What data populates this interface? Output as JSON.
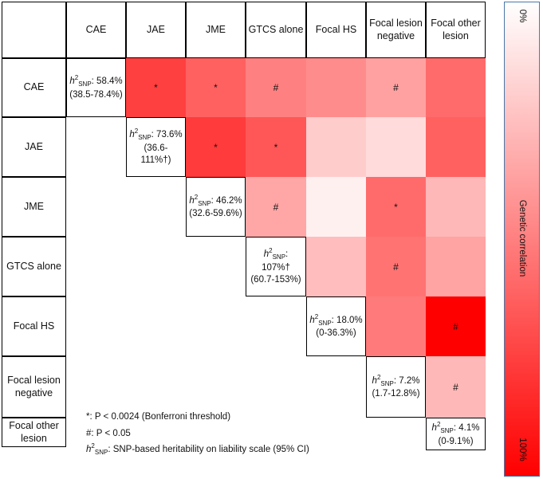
{
  "chart_data": {
    "type": "heatmap",
    "title": "",
    "row_labels": [
      "CAE",
      "JAE",
      "JME",
      "GTCS alone",
      "Focal HS",
      "Focal lesion negative",
      "Focal other lesion"
    ],
    "col_labels": [
      "CAE",
      "JAE",
      "JME",
      "GTCS alone",
      "Focal HS",
      "Focal lesion negative",
      "Focal other lesion"
    ],
    "colorbar": {
      "label": "Genetic correlation",
      "min_label": "0%",
      "max_label": "100%",
      "min": 0,
      "max": 100
    },
    "heritability": [
      {
        "prefix": "",
        "value": ": 58.4% (38.5-78.4%)"
      },
      {
        "prefix": "",
        "value": ": 73.6% (36.6-111%†)"
      },
      {
        "prefix": "",
        "value": ": 46.2% (32.6-59.6%)"
      },
      {
        "prefix": "",
        "value": ": 107%† (60.7-153%)"
      },
      {
        "prefix": "",
        "value": ": 18.0% (0-36.3%)"
      },
      {
        "prefix": "",
        "value": ": 7.2% (1.7-12.8%)"
      },
      {
        "prefix": "",
        "value": ": 4.1% (0-9.1%)"
      }
    ],
    "correlations": [
      {
        "row": 0,
        "col": 1,
        "value": 75,
        "mark": "*"
      },
      {
        "row": 0,
        "col": 2,
        "value": 62,
        "mark": "*"
      },
      {
        "row": 0,
        "col": 3,
        "value": 50,
        "mark": "#"
      },
      {
        "row": 0,
        "col": 4,
        "value": 45,
        "mark": ""
      },
      {
        "row": 0,
        "col": 5,
        "value": 37,
        "mark": "#"
      },
      {
        "row": 0,
        "col": 6,
        "value": 58,
        "mark": ""
      },
      {
        "row": 1,
        "col": 2,
        "value": 77,
        "mark": "*"
      },
      {
        "row": 1,
        "col": 3,
        "value": 66,
        "mark": "*"
      },
      {
        "row": 1,
        "col": 4,
        "value": 20,
        "mark": ""
      },
      {
        "row": 1,
        "col": 5,
        "value": 14,
        "mark": ""
      },
      {
        "row": 1,
        "col": 6,
        "value": 62,
        "mark": ""
      },
      {
        "row": 2,
        "col": 3,
        "value": 35,
        "mark": "#"
      },
      {
        "row": 2,
        "col": 4,
        "value": 6,
        "mark": ""
      },
      {
        "row": 2,
        "col": 5,
        "value": 58,
        "mark": "*"
      },
      {
        "row": 2,
        "col": 6,
        "value": 28,
        "mark": ""
      },
      {
        "row": 3,
        "col": 4,
        "value": 26,
        "mark": ""
      },
      {
        "row": 3,
        "col": 5,
        "value": 55,
        "mark": "#"
      },
      {
        "row": 3,
        "col": 6,
        "value": 36,
        "mark": ""
      },
      {
        "row": 4,
        "col": 5,
        "value": 52,
        "mark": ""
      },
      {
        "row": 4,
        "col": 6,
        "value": 100,
        "mark": "#"
      },
      {
        "row": 5,
        "col": 6,
        "value": 28,
        "mark": "#"
      }
    ],
    "footnotes": {
      "star": ": P < 0.0024 (Bonferroni threshold)",
      "star_symbol": "*",
      "hash": ": P < 0.05",
      "hash_symbol": "#",
      "h2_def": ": SNP-based heritability on liability scale (95% CI)"
    },
    "h2_symbol": "h",
    "h2_sup": "2",
    "h2_sub": "SNP"
  }
}
